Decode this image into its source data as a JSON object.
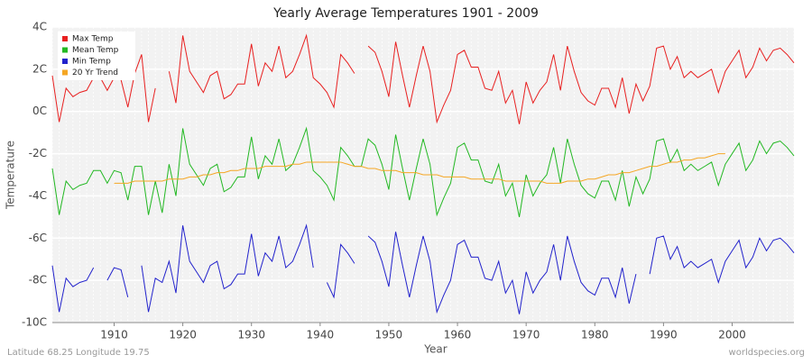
{
  "chart_data": {
    "type": "line",
    "title": "Yearly Average Temperatures 1901 - 2009",
    "x_label": "Year",
    "y_label": "Temperature",
    "footer_left": "Latitude 68.25 Longitude 19.75",
    "footer_right": "worldspecies.org",
    "xlim": [
      1901,
      2009
    ],
    "ylim": [
      -10,
      4
    ],
    "xticks": [
      1910,
      1920,
      1930,
      1940,
      1950,
      1960,
      1970,
      1980,
      1990,
      2000
    ],
    "yticks": [
      {
        "value": -10,
        "label": "-10C"
      },
      {
        "value": -8,
        "label": "-8C"
      },
      {
        "value": -6,
        "label": "-6C"
      },
      {
        "value": -4,
        "label": "-4C"
      },
      {
        "value": -2,
        "label": "-2C"
      },
      {
        "value": 0,
        "label": "0C"
      },
      {
        "value": 2,
        "label": "2C"
      },
      {
        "value": 4,
        "label": "4C"
      }
    ],
    "grid": true,
    "legend": "top-left",
    "x": [
      1901,
      1902,
      1903,
      1904,
      1905,
      1906,
      1907,
      1908,
      1909,
      1910,
      1911,
      1912,
      1913,
      1914,
      1915,
      1916,
      1917,
      1918,
      1919,
      1920,
      1921,
      1922,
      1923,
      1924,
      1925,
      1926,
      1927,
      1928,
      1929,
      1930,
      1931,
      1932,
      1933,
      1934,
      1935,
      1936,
      1937,
      1938,
      1939,
      1940,
      1941,
      1942,
      1943,
      1944,
      1945,
      1946,
      1947,
      1948,
      1949,
      1950,
      1951,
      1952,
      1953,
      1954,
      1955,
      1956,
      1957,
      1958,
      1959,
      1960,
      1961,
      1962,
      1963,
      1964,
      1965,
      1966,
      1967,
      1968,
      1969,
      1970,
      1971,
      1972,
      1973,
      1974,
      1975,
      1976,
      1977,
      1978,
      1979,
      1980,
      1981,
      1982,
      1983,
      1984,
      1985,
      1986,
      1987,
      1988,
      1989,
      1990,
      1991,
      1992,
      1993,
      1994,
      1995,
      1996,
      1997,
      1998,
      1999,
      2000,
      2001,
      2002,
      2003,
      2004,
      2005,
      2006,
      2007,
      2008,
      2009
    ],
    "series": [
      {
        "name": "Max Temp",
        "color": "#e82020",
        "values": [
          1.7,
          -0.5,
          1.1,
          0.7,
          0.9,
          1.0,
          1.6,
          1.6,
          1.0,
          1.6,
          1.5,
          0.2,
          1.8,
          2.7,
          -0.5,
          1.1,
          null,
          1.9,
          0.4,
          3.6,
          1.9,
          1.4,
          0.9,
          1.7,
          1.9,
          0.6,
          0.8,
          1.3,
          1.3,
          3.2,
          1.2,
          2.3,
          1.9,
          3.1,
          1.6,
          1.9,
          2.7,
          3.6,
          1.6,
          1.3,
          0.9,
          0.2,
          2.7,
          2.3,
          1.8,
          null,
          3.1,
          2.8,
          1.9,
          0.7,
          3.3,
          1.7,
          0.2,
          1.7,
          3.1,
          1.9,
          -0.5,
          0.3,
          1.0,
          2.7,
          2.9,
          2.1,
          2.1,
          1.1,
          1.0,
          1.9,
          0.4,
          1.0,
          -0.6,
          1.4,
          0.4,
          1.0,
          1.4,
          2.7,
          1.0,
          3.1,
          1.9,
          0.9,
          0.5,
          0.3,
          1.1,
          1.1,
          0.2,
          1.6,
          -0.1,
          1.3,
          0.5,
          1.2,
          3.0,
          3.1,
          2.0,
          2.6,
          1.6,
          1.9,
          1.6,
          1.8,
          2.0,
          0.9,
          1.9,
          2.4,
          2.9,
          1.6,
          2.1,
          3.0,
          2.4,
          2.9,
          3.0,
          2.7,
          2.3
        ]
      },
      {
        "name": "Mean Temp",
        "color": "#22b822",
        "values": [
          -2.7,
          -4.9,
          -3.3,
          -3.7,
          -3.5,
          -3.4,
          -2.8,
          -2.8,
          -3.4,
          -2.8,
          -2.9,
          -4.2,
          -2.6,
          -2.6,
          -4.9,
          -3.3,
          -4.8,
          -2.5,
          -4.0,
          -0.8,
          -2.5,
          -3.0,
          -3.5,
          -2.7,
          -2.5,
          -3.8,
          -3.6,
          -3.1,
          -3.1,
          -1.2,
          -3.2,
          -2.1,
          -2.5,
          -1.3,
          -2.8,
          -2.5,
          -1.7,
          -0.8,
          -2.8,
          -3.1,
          -3.5,
          -4.2,
          -1.7,
          -2.1,
          -2.6,
          -2.6,
          -1.3,
          -1.6,
          -2.5,
          -3.7,
          -1.1,
          -2.7,
          -4.2,
          -2.7,
          -1.3,
          -2.5,
          -4.9,
          -4.1,
          -3.4,
          -1.7,
          -1.5,
          -2.3,
          -2.3,
          -3.3,
          -3.4,
          -2.5,
          -4.0,
          -3.4,
          -5.0,
          -3.0,
          -4.0,
          -3.4,
          -3.0,
          -1.7,
          -3.4,
          -1.3,
          -2.5,
          -3.5,
          -3.9,
          -4.1,
          -3.3,
          -3.3,
          -4.2,
          -2.8,
          -4.5,
          -3.1,
          -3.9,
          -3.2,
          -1.4,
          -1.3,
          -2.4,
          -1.8,
          -2.8,
          -2.5,
          -2.8,
          -2.6,
          -2.4,
          -3.5,
          -2.5,
          -2.0,
          -1.5,
          -2.8,
          -2.3,
          -1.4,
          -2.0,
          -1.5,
          -1.4,
          -1.7,
          -2.1
        ]
      },
      {
        "name": "Min Temp",
        "color": "#2222cc",
        "values": [
          -7.3,
          -9.5,
          -7.9,
          -8.3,
          -8.1,
          -8.0,
          -7.4,
          null,
          -8.0,
          -7.4,
          -7.5,
          -8.8,
          null,
          -7.3,
          -9.5,
          -7.9,
          -8.1,
          -7.1,
          -8.6,
          -5.4,
          -7.1,
          -7.6,
          -8.1,
          -7.3,
          -7.1,
          -8.4,
          -8.2,
          -7.7,
          -7.7,
          -5.8,
          -7.8,
          -6.7,
          -7.1,
          -5.9,
          -7.4,
          -7.1,
          -6.3,
          -5.4,
          -7.4,
          null,
          -8.1,
          -8.8,
          -6.3,
          -6.7,
          -7.2,
          null,
          -5.9,
          -6.2,
          -7.1,
          -8.3,
          -5.7,
          -7.3,
          -8.8,
          -7.3,
          -5.9,
          -7.1,
          -9.5,
          -8.7,
          -8.0,
          -6.3,
          -6.1,
          -6.9,
          -6.9,
          -7.9,
          -8.0,
          -7.1,
          -8.6,
          -8.0,
          -9.6,
          -7.6,
          -8.6,
          -8.0,
          -7.6,
          -6.3,
          -8.0,
          -5.9,
          -7.1,
          -8.1,
          -8.5,
          -8.7,
          -7.9,
          -7.9,
          -8.8,
          -7.4,
          -9.1,
          -7.7,
          null,
          -7.7,
          -6.0,
          -5.9,
          -7.0,
          -6.4,
          -7.4,
          -7.1,
          -7.4,
          -7.2,
          -7.0,
          -8.1,
          -7.1,
          -6.6,
          -6.1,
          -7.4,
          -6.9,
          -6.0,
          -6.6,
          -6.1,
          -6.0,
          -6.3,
          -6.7
        ]
      },
      {
        "name": "20 Yr Trend",
        "color": "#f5a623",
        "values": [
          null,
          null,
          null,
          null,
          null,
          null,
          null,
          null,
          null,
          -3.4,
          -3.4,
          -3.4,
          -3.3,
          -3.3,
          -3.3,
          -3.3,
          -3.3,
          -3.2,
          -3.2,
          -3.2,
          -3.1,
          -3.1,
          -3.0,
          -3.0,
          -2.9,
          -2.9,
          -2.8,
          -2.8,
          -2.7,
          -2.7,
          -2.7,
          -2.6,
          -2.6,
          -2.6,
          -2.6,
          -2.5,
          -2.5,
          -2.4,
          -2.4,
          -2.4,
          -2.4,
          -2.4,
          -2.4,
          -2.5,
          -2.6,
          -2.6,
          -2.7,
          -2.7,
          -2.8,
          -2.8,
          -2.8,
          -2.9,
          -2.9,
          -2.9,
          -3.0,
          -3.0,
          -3.0,
          -3.1,
          -3.1,
          -3.1,
          -3.1,
          -3.2,
          -3.2,
          -3.2,
          -3.2,
          -3.2,
          -3.3,
          -3.3,
          -3.3,
          -3.3,
          -3.3,
          -3.3,
          -3.4,
          -3.4,
          -3.4,
          -3.3,
          -3.3,
          -3.3,
          -3.2,
          -3.2,
          -3.1,
          -3.0,
          -3.0,
          -2.9,
          -2.9,
          -2.8,
          -2.7,
          -2.6,
          -2.6,
          -2.5,
          -2.4,
          -2.4,
          -2.3,
          -2.3,
          -2.2,
          -2.2,
          -2.1,
          -2.0,
          -2.0,
          null,
          null,
          null,
          null,
          null,
          null,
          null,
          null,
          null,
          null
        ]
      }
    ]
  }
}
